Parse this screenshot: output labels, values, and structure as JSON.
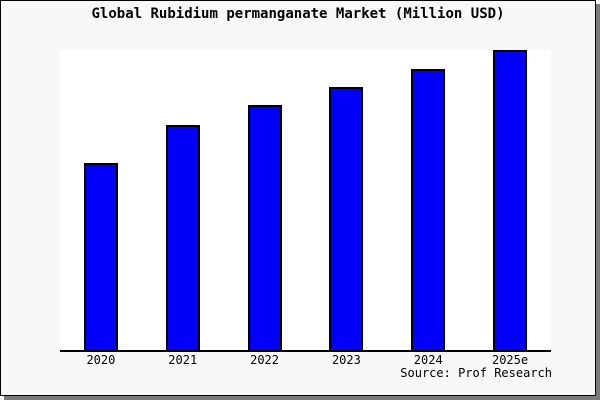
{
  "title": "Global Rubidium permanganate Market (Million USD)",
  "source_note": "Source: Prof Research",
  "colors": {
    "background": "#f8f8f8",
    "plot_background": "#ffffff",
    "bar_fill": "#0000fa",
    "bar_border": "#000000",
    "axis": "#000000",
    "shadow_dark": "#7a7a7a",
    "shadow_light": "#b3b3b3"
  },
  "chart_data": {
    "type": "bar",
    "title": "Global Rubidium permanganate Market (Million USD)",
    "categories": [
      "2020",
      "2021",
      "2022",
      "2023",
      "2024",
      "2025e"
    ],
    "values": [
      62.3,
      75.0,
      81.7,
      87.7,
      93.8,
      100.0
    ],
    "value_scale": "percent of tallest bar (2025e); chart displays no y-axis, gridlines or data labels",
    "xlabel": "",
    "ylabel": "",
    "ylim": [
      0,
      100
    ],
    "grid": false,
    "legend": false,
    "annotations": [
      "Source: Prof Research"
    ]
  }
}
